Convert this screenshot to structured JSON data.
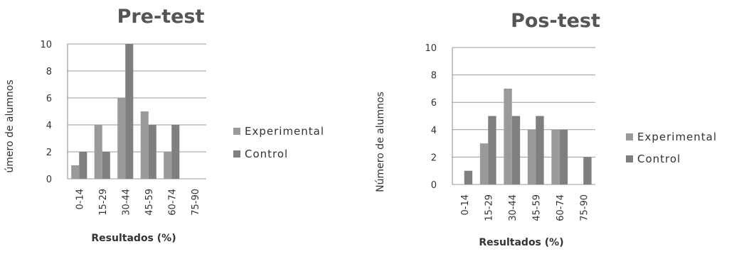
{
  "chart_data": [
    {
      "type": "bar",
      "title": "Pre-test",
      "xlabel": "Resultados (%)",
      "ylabel": "úmero de alumnos",
      "categories": [
        "0-14",
        "15-29",
        "30-44",
        "45-59",
        "60-74",
        "75-90"
      ],
      "yticks": [
        "0",
        "2",
        "4",
        "6",
        "8",
        "10"
      ],
      "ylim": [
        0,
        10
      ],
      "grid": true,
      "legend_position": "right",
      "series": [
        {
          "name": "Experimental",
          "values": [
            1,
            4,
            6,
            5,
            2,
            0
          ],
          "color": "#9a9a9a"
        },
        {
          "name": "Control",
          "values": [
            2,
            2,
            10,
            4,
            4,
            0
          ],
          "color": "#7f7f7f"
        }
      ]
    },
    {
      "type": "bar",
      "title": "Pos-test",
      "xlabel": "Resultados (%)",
      "ylabel": "Número de alumnos",
      "categories": [
        "0-14",
        "15-29",
        "30-44",
        "45-59",
        "60-74",
        "75-90"
      ],
      "yticks": [
        "0",
        "2",
        "4",
        "6",
        "8",
        "10"
      ],
      "ylim": [
        0,
        10
      ],
      "grid": true,
      "legend_position": "right",
      "series": [
        {
          "name": "Experimental",
          "values": [
            0,
            3,
            7,
            4,
            4,
            0
          ],
          "color": "#9a9a9a"
        },
        {
          "name": "Control",
          "values": [
            1,
            5,
            5,
            5,
            4,
            2
          ],
          "color": "#7f7f7f"
        }
      ]
    }
  ]
}
